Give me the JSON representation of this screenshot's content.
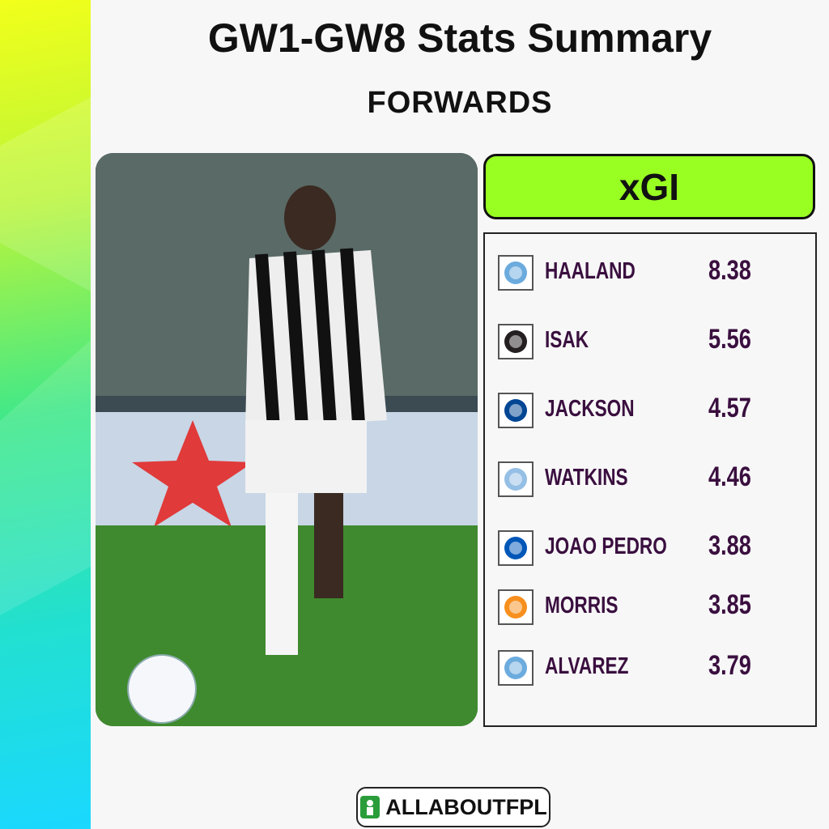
{
  "header": {
    "title": "GW1-GW8 Stats Summary",
    "subtitle": "FORWARDS"
  },
  "stat_label": "xGI",
  "table": {
    "rows": [
      {
        "name": "HAALAND",
        "value": 8.38
      },
      {
        "name": "ISAK",
        "value": 5.56
      },
      {
        "name": "JACKSON",
        "value": 4.57
      },
      {
        "name": "WATKINS",
        "value": 4.46
      },
      {
        "name": "JOAO PEDRO",
        "value": 3.88
      },
      {
        "name": "MORRIS",
        "value": 3.85
      },
      {
        "name": "ALVAREZ",
        "value": 3.79
      }
    ]
  },
  "footer": {
    "brand": "ALLABOUTFPL"
  }
}
